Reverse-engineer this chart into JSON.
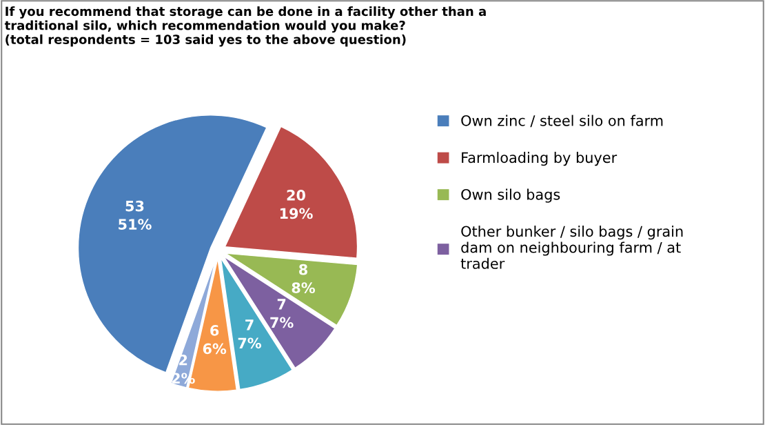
{
  "chart_data": {
    "type": "pie",
    "title": "If you recommend that storage can be done in a facility other than a\ntraditional silo, which recommendation would you make?\n(total respondents = 103 said yes to the above question)",
    "categories": [
      "Own zinc / steel silo on farm",
      "Farmloading by buyer",
      "Own silo bags",
      "Other bunker / silo bags / grain\ndam on neighbouring farm / at\ntrader",
      null,
      null,
      null
    ],
    "values": [
      53,
      20,
      8,
      7,
      7,
      6,
      2
    ],
    "colors": [
      "#4a7ebb",
      "#be4b48",
      "#98b954",
      "#7d60a0",
      "#46aac5",
      "#f79646",
      "#8ea9d9"
    ],
    "value_labels": [
      "53\n51%",
      "20\n19%",
      "8\n8%",
      "7\n7%",
      "7\n7%",
      "6\n6%",
      "2\n2%"
    ],
    "legend": "right"
  }
}
